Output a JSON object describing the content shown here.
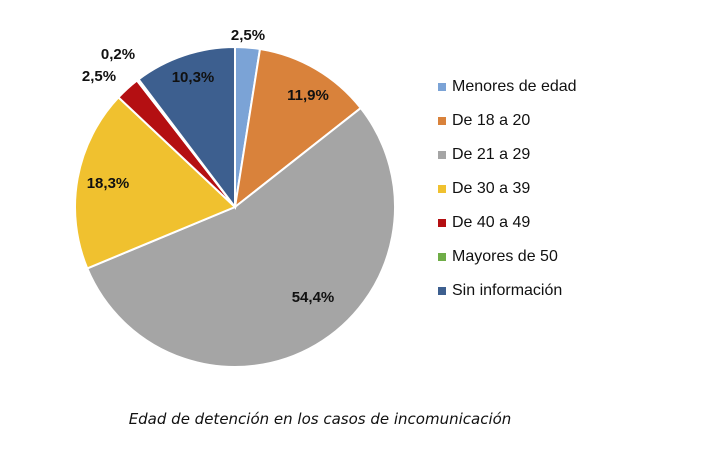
{
  "chart_data": {
    "type": "pie",
    "categories": [
      "Menores de edad",
      "De 18 a 20",
      "De 21 a 29",
      "De 30 a 39",
      "De 40 a 49",
      "Mayores de 50",
      "Sin información"
    ],
    "values": [
      2.5,
      11.9,
      54.4,
      18.3,
      2.5,
      0.2,
      10.3
    ],
    "labels": [
      "2,5%",
      "11,9%",
      "54,4%",
      "18,3%",
      "2,5%",
      "0,2%",
      "10,3%"
    ],
    "colors": [
      "#7BA3D6",
      "#D9823B",
      "#A5A5A5",
      "#F0C12F",
      "#B40F12",
      "#6FAD47",
      "#3D5F8F"
    ],
    "legend_position": "right",
    "caption": "Edad de detención en los casos de incomunicación"
  }
}
